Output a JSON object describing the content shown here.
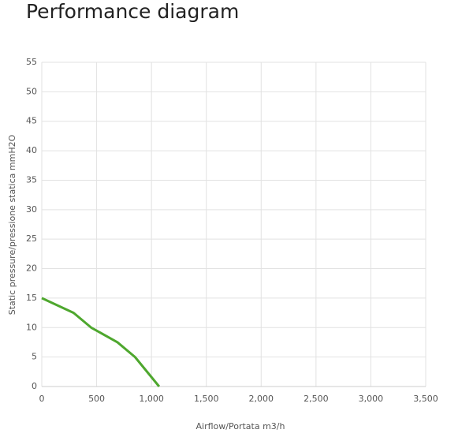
{
  "chart_data": {
    "type": "line",
    "title": "Performance diagram",
    "x_label": "Airflow/Portata m3/h",
    "y_label": "Static pressure/pressione statica mmH2O",
    "x": [
      0,
      290,
      450,
      690,
      850,
      1070
    ],
    "values": [
      15,
      12.5,
      10,
      7.5,
      5,
      0
    ],
    "color": "#4ea72e",
    "xlim": [
      0,
      3500
    ],
    "xticks": [
      0,
      500,
      {
        "value": 1000,
        "label": "1,000"
      },
      {
        "value": 1500,
        "label": "1,500"
      },
      {
        "value": 2000,
        "label": "2,000"
      },
      {
        "value": 2500,
        "label": "2,500"
      },
      {
        "value": 3000,
        "label": "3,000"
      },
      {
        "value": 3500,
        "label": "3,500"
      }
    ],
    "ylim": [
      0,
      55
    ],
    "yticks": [
      0,
      5,
      10,
      15,
      20,
      25,
      30,
      35,
      40,
      45,
      50,
      55
    ],
    "grid": true
  }
}
